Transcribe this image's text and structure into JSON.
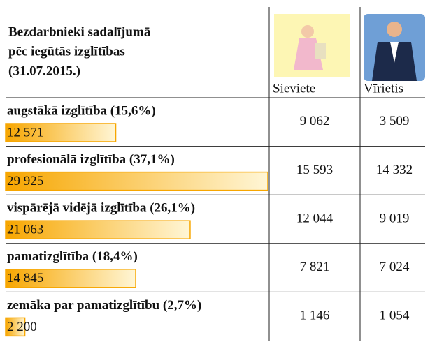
{
  "chart_data": {
    "type": "bar",
    "title": [
      "Bezdarbnieki sadalījumā",
      "pēc iegūtās izglītības",
      "(31.07.2015.)"
    ],
    "categories": [
      "augstākā izglītība (15,6%)",
      "profesionālā izglītība (37,1%)",
      "vispārējā vidējā izglītība (26,1%)",
      "pamatizglītība (18,4%)",
      "zemāka par pamatizglītību (2,7%)"
    ],
    "values": [
      12571,
      29925,
      21063,
      14845,
      2200
    ],
    "value_labels": [
      "12 571",
      "29 925",
      "21 063",
      "14 845",
      "2 200"
    ],
    "color": "#f7a600",
    "columns": [
      "Sieviete",
      "Vīrietis"
    ],
    "table": [
      [
        "9 062",
        "3 509"
      ],
      [
        "15 593",
        "14 332"
      ],
      [
        "12 044",
        "9 019"
      ],
      [
        "7 821",
        "7 024"
      ],
      [
        "1 146",
        "1 054"
      ]
    ]
  }
}
